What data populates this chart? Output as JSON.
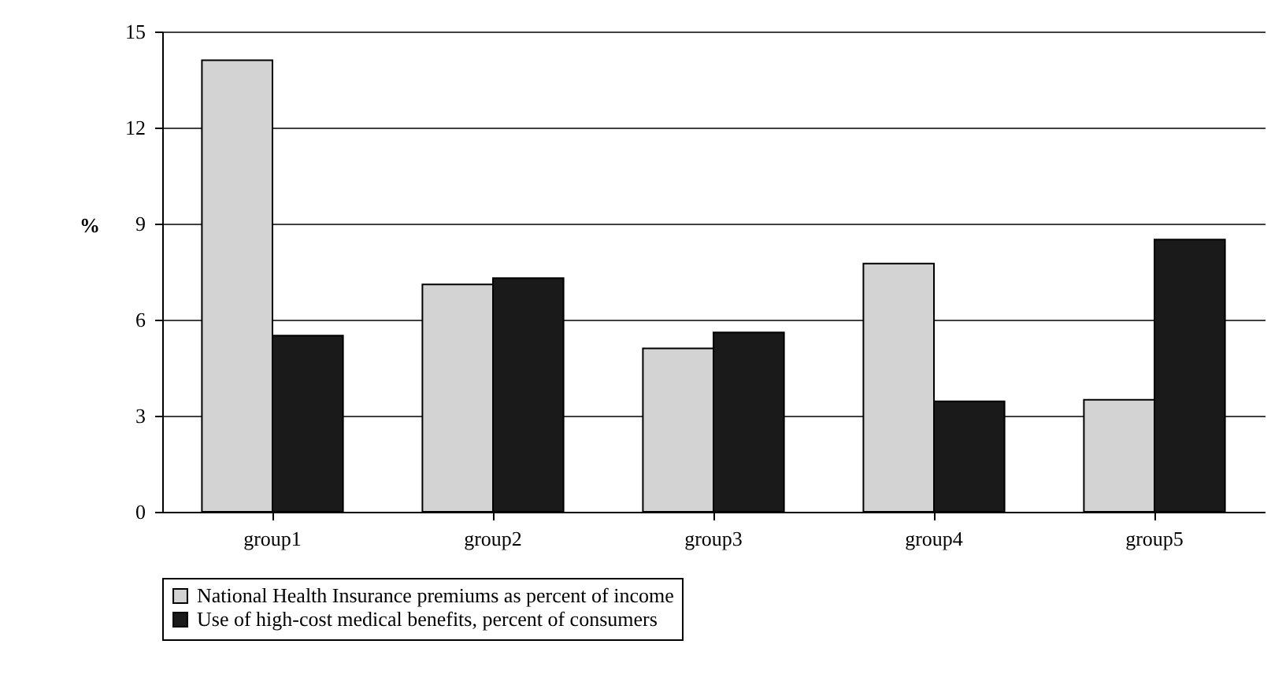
{
  "chart_data": {
    "type": "bar",
    "ylabel": "%",
    "categories": [
      "group1",
      "group2",
      "group3",
      "group4",
      "group5"
    ],
    "series": [
      {
        "name": "National Health Insurance premiums as percent of income",
        "color": "#d3d3d3",
        "values": [
          14.1,
          7.1,
          5.1,
          7.75,
          3.5
        ]
      },
      {
        "name": "Use of high-cost medical benefits, percent of consumers",
        "color": "#1a1a1a",
        "values": [
          5.5,
          7.3,
          5.6,
          3.45,
          8.5
        ]
      }
    ],
    "ylim": [
      0,
      15
    ],
    "yticks": [
      0,
      3,
      6,
      9,
      12,
      15
    ],
    "grid": "y",
    "legend": "bottom"
  }
}
